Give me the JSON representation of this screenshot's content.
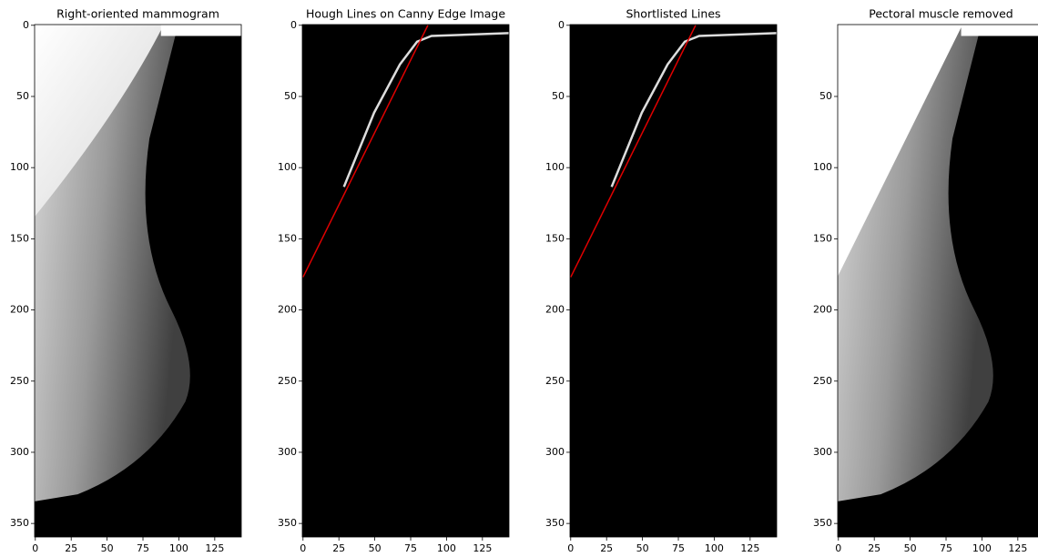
{
  "chart_data": [
    {
      "type": "image",
      "title": "Right-oriented mammogram",
      "xlim": [
        -0.5,
        143.5
      ],
      "ylim": [
        359.5,
        -0.5
      ],
      "xticks": [
        0,
        25,
        50,
        75,
        100,
        125
      ],
      "yticks": [
        0,
        50,
        100,
        150,
        200,
        250,
        300,
        350
      ]
    },
    {
      "type": "image",
      "title": "Hough Lines on Canny Edge Image",
      "xlim": [
        -0.5,
        143.5
      ],
      "ylim": [
        359.5,
        -0.5
      ],
      "xticks": [
        0,
        25,
        50,
        75,
        100,
        125
      ],
      "yticks": [
        0,
        50,
        100,
        150,
        200,
        250,
        300,
        350
      ],
      "lines": [
        {
          "color": "#e00000",
          "x": [
            0,
            87
          ],
          "y": [
            177,
            0
          ]
        }
      ]
    },
    {
      "type": "image",
      "title": "Shortlisted Lines",
      "xlim": [
        -0.5,
        143.5
      ],
      "ylim": [
        359.5,
        -0.5
      ],
      "xticks": [
        0,
        25,
        50,
        75,
        100,
        125
      ],
      "yticks": [
        0,
        50,
        100,
        150,
        200,
        250,
        300,
        350
      ],
      "lines": [
        {
          "color": "#e00000",
          "x": [
            0,
            87
          ],
          "y": [
            177,
            0
          ]
        }
      ]
    },
    {
      "type": "image",
      "title": "Pectoral muscle removed",
      "xlim": [
        -0.5,
        143.5
      ],
      "ylim": [
        359.5,
        -0.5
      ],
      "xticks": [
        0,
        25,
        50,
        75,
        100,
        125
      ],
      "yticks": [
        50,
        100,
        150,
        200,
        250,
        300,
        350
      ]
    }
  ]
}
